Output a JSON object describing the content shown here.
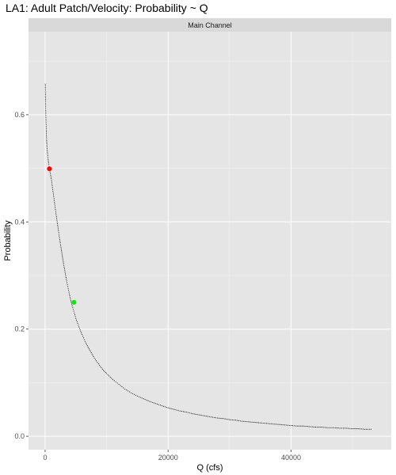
{
  "chart_data": {
    "type": "scatter",
    "title": "LA1: Adult Patch/Velocity: Probability ~ Q",
    "facet_label": "Main Channel",
    "xlabel": "Q (cfs)",
    "ylabel": "Probability",
    "xlim": [
      -2700,
      56300
    ],
    "ylim": [
      -0.025,
      0.755
    ],
    "x_ticks": [
      0,
      20000,
      40000
    ],
    "x_tick_labels": [
      "0",
      "20000",
      "40000"
    ],
    "y_ticks": [
      0.0,
      0.2,
      0.4,
      0.6
    ],
    "y_tick_labels": [
      "0.0",
      "0.2",
      "0.4",
      "0.6"
    ],
    "grid": true,
    "series": [
      {
        "style": "dotted-curve",
        "color": "#000000",
        "x": [
          30,
          60,
          100,
          150,
          200,
          250,
          300,
          400,
          500,
          600,
          700,
          800,
          900,
          1000,
          1200,
          1400,
          1600,
          1800,
          2000,
          2250,
          2500,
          2750,
          3000,
          3250,
          3500,
          3750,
          4000,
          4250,
          4500,
          4750,
          5000,
          5500,
          6000,
          6500,
          7000,
          7500,
          8000,
          8500,
          9000,
          9500,
          10000,
          11000,
          12000,
          13000,
          14000,
          15000,
          16000,
          17000,
          18000,
          19000,
          20000,
          21000,
          22000,
          23000,
          24000,
          25000,
          26000,
          27000,
          28000,
          29000,
          30000,
          31000,
          32000,
          33000,
          34000,
          35000,
          36000,
          37000,
          38000,
          39000,
          40000,
          41000,
          42000,
          43000,
          44000,
          45000,
          46000,
          47000,
          48000,
          49000,
          50000,
          51000,
          52000,
          53000
        ],
        "y": [
          0.657,
          0.625,
          0.605,
          0.585,
          0.568,
          0.552,
          0.54,
          0.527,
          0.516,
          0.507,
          0.499,
          0.493,
          0.487,
          0.481,
          0.464,
          0.447,
          0.43,
          0.413,
          0.397,
          0.377,
          0.358,
          0.34,
          0.322,
          0.306,
          0.29,
          0.276,
          0.262,
          0.25,
          0.24,
          0.23,
          0.22,
          0.204,
          0.19,
          0.177,
          0.166,
          0.156,
          0.146,
          0.138,
          0.13,
          0.123,
          0.117,
          0.106,
          0.097,
          0.088,
          0.081,
          0.075,
          0.07,
          0.065,
          0.061,
          0.057,
          0.053,
          0.05,
          0.047,
          0.045,
          0.042,
          0.04,
          0.038,
          0.036,
          0.034,
          0.033,
          0.031,
          0.03,
          0.028,
          0.027,
          0.026,
          0.025,
          0.024,
          0.023,
          0.022,
          0.021,
          0.02,
          0.019,
          0.019,
          0.018,
          0.017,
          0.017,
          0.016,
          0.016,
          0.015,
          0.015,
          0.014,
          0.014,
          0.013,
          0.013
        ]
      },
      {
        "style": "point",
        "color": "#ff0000",
        "x": [
          700
        ],
        "y": [
          0.499
        ]
      },
      {
        "style": "point",
        "color": "#00ee00",
        "x": [
          4700
        ],
        "y": [
          0.25
        ]
      }
    ],
    "colors": {
      "panel_bg": "#e5e5e5",
      "strip_bg": "#d9d9d9",
      "grid_major": "#ffffff",
      "tick_text": "#4d4d4d"
    }
  }
}
